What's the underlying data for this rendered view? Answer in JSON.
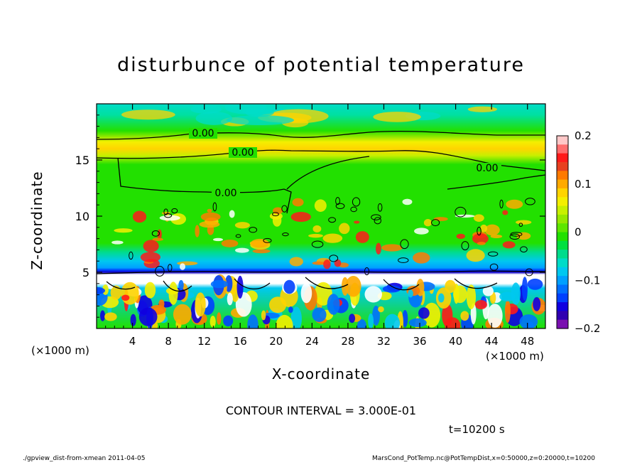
{
  "figure": {
    "title": "disturbunce of potential temperature",
    "xlabel": "X-coordinate",
    "ylabel": "Z-coordinate",
    "x_unit_left": "(×1000 m)",
    "x_unit_right": "(×1000 m)",
    "contour_interval": "CONTOUR INTERVAL = 3.000E-01",
    "time_stamp": "t=10200 s",
    "footer_left": "./gpview_dist-from-xmean   2011-04-05",
    "footer_right": "MarsCond_PotTemp.nc@PotTempDist,x=0:50000,z=0:20000,t=10200",
    "contour_labels": [
      "0.00",
      "0.00",
      "0.00",
      "0.00"
    ]
  },
  "chart_data": {
    "type": "heatmap",
    "title": "disturbunce of potential temperature",
    "xlabel": "X-coordinate",
    "ylabel": "Z-coordinate",
    "x_unit": "(×1000 m)",
    "xlim": [
      0,
      50
    ],
    "ylim": [
      0,
      20
    ],
    "x_ticks": [
      4,
      8,
      12,
      16,
      20,
      24,
      28,
      32,
      36,
      40,
      44,
      48
    ],
    "y_ticks": [
      5,
      10,
      15
    ],
    "colorbar": {
      "range": [
        -0.2,
        0.2
      ],
      "ticks": [
        "0.2",
        "0.1",
        "0",
        "−0.1",
        "−0.2"
      ],
      "tick_values": [
        0.2,
        0.1,
        0,
        -0.1,
        -0.2
      ],
      "colors_top_to_bottom": [
        "#ffc8c8",
        "#ff6e6e",
        "#ff1a1a",
        "#e84020",
        "#ff7a00",
        "#ffaa00",
        "#ffd400",
        "#f4ef00",
        "#c8f000",
        "#96e800",
        "#5ee600",
        "#22e000",
        "#00e040",
        "#00dc8c",
        "#00dcc8",
        "#00c8f0",
        "#00a0ff",
        "#0070ff",
        "#0040ff",
        "#1000e0",
        "#3000b0",
        "#7a10b0"
      ]
    },
    "contour_interval": 0.3,
    "contour_labels": [
      "0.00",
      "0.00",
      "0.00",
      "0.00"
    ],
    "time_s": 10200,
    "grid": false,
    "bands": [
      {
        "z_range": [
          17.5,
          20
        ],
        "approx_value": -0.03,
        "note": "cyan/teal upper layer"
      },
      {
        "z_range": [
          15.5,
          17.5
        ],
        "approx_value": 0.08,
        "note": "warm yellow-orange band"
      },
      {
        "z_range": [
          7,
          15.5
        ],
        "approx_value": 0.0,
        "note": "near-zero green with warm plumes"
      },
      {
        "z_range": [
          5,
          7
        ],
        "approx_value": -0.08,
        "note": "cold cyan layer"
      },
      {
        "z_range": [
          4,
          5
        ],
        "approx_value": -0.2,
        "note": "strong negative dark blue layer"
      },
      {
        "z_range": [
          0,
          4
        ],
        "approx_value": 0.0,
        "note": "turbulent mixed layer, |values| up to 0.2"
      }
    ]
  }
}
